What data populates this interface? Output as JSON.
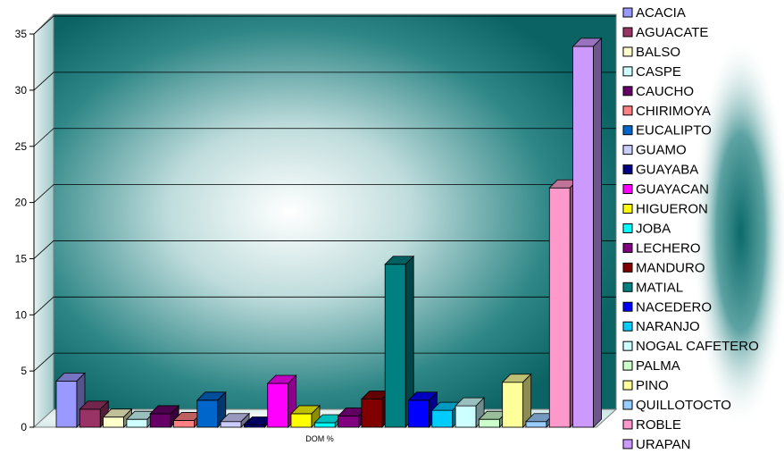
{
  "chart_data": {
    "type": "bar",
    "xlabel": "DOM %",
    "ylabel": "",
    "ylim": [
      0,
      35
    ],
    "yticks": [
      0,
      5,
      10,
      15,
      20,
      25,
      30,
      35
    ],
    "grid": true,
    "legend_position": "right",
    "categories": [
      "ACACIA",
      "AGUACATE",
      "BALSO",
      "CASPE",
      "CAUCHO",
      "CHIRIMOYA",
      "EUCALIPTO",
      "GUAMO",
      "GUAYABA",
      "GUAYACAN",
      "HIGUERON",
      "JOBA",
      "LECHERO",
      "MANDURO",
      "MATIAL",
      "NACEDERO",
      "NARANJO",
      "NOGAL CAFETERO",
      "PALMA",
      "PINO",
      "QUILLOTOCTO",
      "ROBLE",
      "URAPAN"
    ],
    "values": [
      4.1,
      1.6,
      0.9,
      0.7,
      1.2,
      0.6,
      2.4,
      0.5,
      0.2,
      3.9,
      1.2,
      0.4,
      1.0,
      2.5,
      14.5,
      2.4,
      1.5,
      1.9,
      0.7,
      4.0,
      0.5,
      21.3,
      33.9
    ],
    "colors": [
      "#9999ff",
      "#993366",
      "#ffffcc",
      "#ccffff",
      "#660066",
      "#ff8080",
      "#0066cc",
      "#ccccff",
      "#000080",
      "#ff00ff",
      "#ffff00",
      "#00ffff",
      "#800080",
      "#800000",
      "#008080",
      "#0000ff",
      "#00ccff",
      "#ccffff",
      "#ccffcc",
      "#ffff99",
      "#99ccff",
      "#ff99cc",
      "#cc99ff"
    ]
  }
}
